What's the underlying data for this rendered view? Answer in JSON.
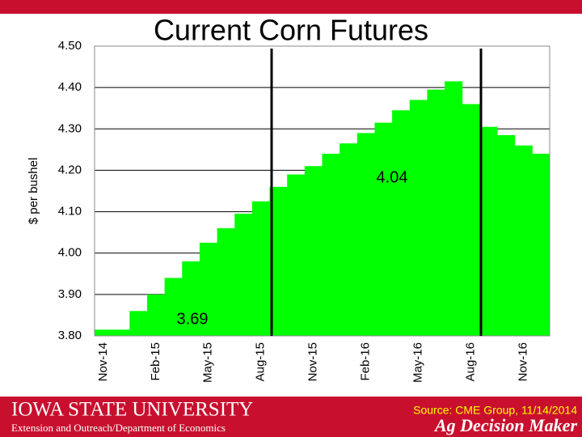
{
  "chart_data": {
    "type": "bar",
    "title": "Current Corn Futures",
    "ylabel": "$ per bushel",
    "categories": [
      "Nov-14",
      null,
      null,
      "Feb-15",
      null,
      null,
      "May-15",
      null,
      null,
      "Aug-15",
      null,
      null,
      "Nov-15",
      null,
      null,
      "Feb-16",
      null,
      null,
      "May-16",
      null,
      null,
      "Aug-16",
      null,
      null,
      "Nov-16",
      null
    ],
    "values": [
      3.815,
      3.815,
      3.86,
      3.9,
      3.94,
      3.98,
      4.025,
      4.06,
      4.095,
      4.125,
      4.16,
      4.19,
      4.21,
      4.24,
      4.265,
      4.29,
      4.315,
      4.345,
      4.37,
      4.395,
      4.415,
      4.36,
      4.305,
      4.285,
      4.26,
      4.24
    ],
    "color": "#00ff00",
    "ylim": [
      3.8,
      4.5
    ],
    "yticks": [
      {
        "value": 3.8,
        "label": "3.80"
      },
      {
        "value": 3.9,
        "label": "3.90"
      },
      {
        "value": 4.0,
        "label": "4.00"
      },
      {
        "value": 4.1,
        "label": "4.10"
      },
      {
        "value": 4.2,
        "label": "4.20"
      },
      {
        "value": 4.3,
        "label": "4.30"
      },
      {
        "value": 4.4,
        "label": "4.40"
      },
      {
        "value": 4.5,
        "label": "4.50"
      }
    ],
    "grid": true,
    "annotations": [
      "3.69",
      "4.04"
    ]
  },
  "footer": {
    "university": "Iowa State University",
    "department": "Extension and Outreach/Department of Economics",
    "source": "Source: CME Group, 11/14/2014",
    "brand": "Ag Decision Maker"
  }
}
